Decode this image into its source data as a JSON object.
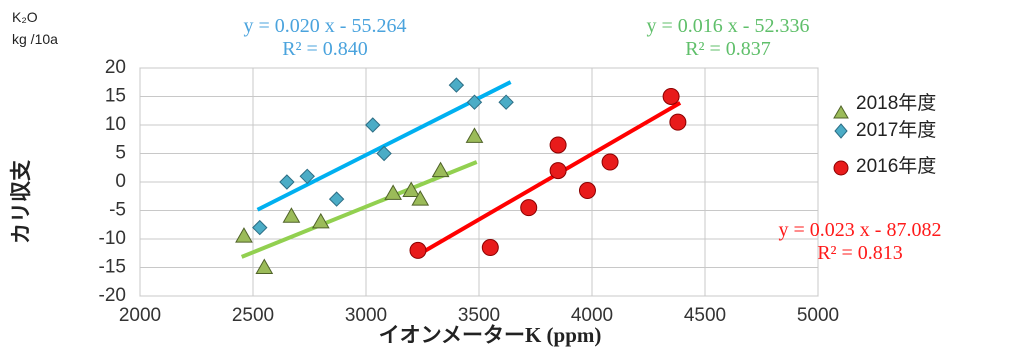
{
  "chart_data": {
    "type": "scatter",
    "xlim": [
      2000,
      5000
    ],
    "ylim": [
      -20,
      20
    ],
    "xticks": [
      2000,
      2500,
      3000,
      3500,
      4000,
      4500,
      5000
    ],
    "yticks": [
      -20,
      -15,
      -10,
      -5,
      0,
      5,
      10,
      15,
      20
    ],
    "grid": true,
    "legend_position": "right",
    "xlabel": "イオンメーターK (ppm)",
    "ylabel": "カリ収支",
    "yunit_line1": "K₂O",
    "yunit_line2": "kg /10a",
    "series": [
      {
        "name": "2018年度",
        "marker": "triangle",
        "color": "#9bbb59",
        "trend_color": "#92d050",
        "points": [
          [
            2460,
            -9.5
          ],
          [
            2550,
            -15
          ],
          [
            2670,
            -6
          ],
          [
            2800,
            -7
          ],
          [
            3120,
            -2
          ],
          [
            3200,
            -1.5
          ],
          [
            3240,
            -3
          ],
          [
            3330,
            2
          ],
          [
            3480,
            8
          ]
        ],
        "trend_x": [
          2450,
          3490
        ],
        "equation": "y = 0.016 x - 52.336",
        "r2": "R² = 0.837"
      },
      {
        "name": "2017年度",
        "marker": "diamond",
        "color": "#4bacc6",
        "trend_color": "#00b0f0",
        "points": [
          [
            2530,
            -8
          ],
          [
            2650,
            0
          ],
          [
            2740,
            1
          ],
          [
            2870,
            -3
          ],
          [
            3030,
            10
          ],
          [
            3080,
            5
          ],
          [
            3400,
            17
          ],
          [
            3480,
            14
          ],
          [
            3620,
            14
          ]
        ],
        "trend_x": [
          2520,
          3640
        ],
        "equation": "y = 0.020 x - 55.264",
        "r2": "R² = 0.840"
      },
      {
        "name": "2016年度",
        "marker": "circle",
        "color": "#e81b1b",
        "trend_color": "#ff0000",
        "points": [
          [
            3230,
            -12
          ],
          [
            3550,
            -11.5
          ],
          [
            3720,
            -4.5
          ],
          [
            3850,
            6.5
          ],
          [
            3850,
            2
          ],
          [
            3980,
            -1.5
          ],
          [
            4080,
            3.5
          ],
          [
            4350,
            15
          ],
          [
            4380,
            10.5
          ]
        ],
        "trend_x": [
          3230,
          4390
        ],
        "equation": "y = 0.023 x - 87.082",
        "r2": "R² = 0.813"
      }
    ]
  }
}
